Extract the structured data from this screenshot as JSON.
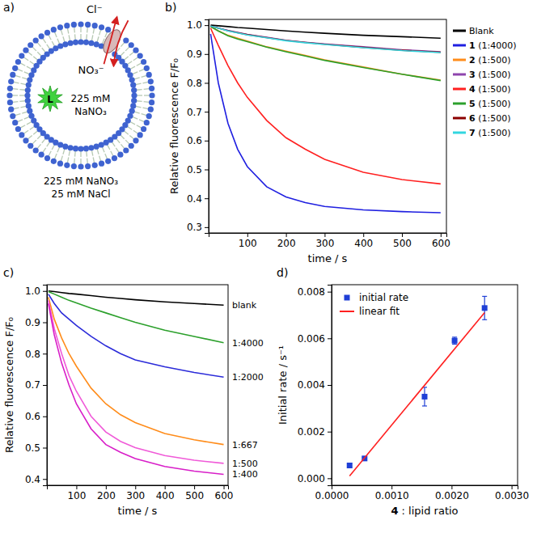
{
  "diagram": {
    "panel_label": "a)",
    "ion_out": "Cl⁻",
    "ion_in": "NO₃⁻",
    "dye": "L",
    "inside": [
      "225 mM",
      "NaNO₃"
    ],
    "outside": [
      "225 mM NaNO₃",
      "25 mM NaCl"
    ]
  },
  "chart_data": [
    {
      "type": "line",
      "panel_label": "b)",
      "x_label": "time / s",
      "y_label": "Relative fluorescence F/F₀",
      "xlim": [
        0,
        615
      ],
      "ylim": [
        0.28,
        1.02
      ],
      "xticks": [
        100,
        200,
        300,
        400,
        500,
        600
      ],
      "yticks": [
        0.3,
        0.4,
        0.5,
        0.6,
        0.7,
        0.8,
        0.9,
        {
          "value": 1,
          "label": "1.0"
        }
      ],
      "legend": "right",
      "x": [
        5,
        25,
        50,
        75,
        100,
        150,
        200,
        250,
        300,
        400,
        500,
        600
      ],
      "series": [
        {
          "name": "Blank",
          "color": "#000000",
          "values": [
            1.0,
            0.998,
            0.995,
            0.992,
            0.99,
            0.985,
            0.98,
            0.976,
            0.972,
            0.965,
            0.96,
            0.955
          ]
        },
        {
          "name": "1 (1:4000)",
          "color": "#1f1fe0",
          "values": [
            0.97,
            0.8,
            0.66,
            0.57,
            0.51,
            0.44,
            0.405,
            0.385,
            0.372,
            0.36,
            0.354,
            0.35
          ]
        },
        {
          "name": "2 (1:500)",
          "color": "#ff8c1a",
          "values": [
            0.995,
            0.98,
            0.965,
            0.955,
            0.945,
            0.925,
            0.91,
            0.895,
            0.88,
            0.855,
            0.83,
            0.81
          ]
        },
        {
          "name": "3 (1:500)",
          "color": "#8e44ad",
          "values": [
            0.997,
            0.99,
            0.982,
            0.975,
            0.968,
            0.958,
            0.948,
            0.941,
            0.935,
            0.925,
            0.915,
            0.908
          ]
        },
        {
          "name": "4 (1:500)",
          "color": "#ff2020",
          "values": [
            0.99,
            0.93,
            0.86,
            0.8,
            0.75,
            0.67,
            0.61,
            0.57,
            0.535,
            0.49,
            0.465,
            0.45
          ]
        },
        {
          "name": "5 (1:500)",
          "color": "#2ca02c",
          "values": [
            0.995,
            0.98,
            0.963,
            0.952,
            0.943,
            0.924,
            0.908,
            0.893,
            0.878,
            0.853,
            0.83,
            0.808
          ]
        },
        {
          "name": "6 (1:500)",
          "color": "#8b0000",
          "values": [
            0.997,
            0.99,
            0.981,
            0.974,
            0.967,
            0.957,
            0.947,
            0.94,
            0.934,
            0.923,
            0.913,
            0.906
          ]
        },
        {
          "name": "7 (1:500)",
          "color": "#33d6e0",
          "values": [
            0.997,
            0.99,
            0.98,
            0.973,
            0.966,
            0.956,
            0.946,
            0.939,
            0.933,
            0.922,
            0.912,
            0.905
          ]
        }
      ]
    },
    {
      "type": "line",
      "panel_label": "c)",
      "x_label": "time / s",
      "y_label": "Relative fluorescence F/F₀",
      "xlim": [
        0,
        615
      ],
      "ylim": [
        0.38,
        1.02
      ],
      "xticks": [
        100,
        200,
        300,
        400,
        500,
        600
      ],
      "yticks": [
        0.4,
        0.5,
        0.6,
        0.7,
        0.8,
        0.9,
        {
          "value": 1,
          "label": "1.0"
        }
      ],
      "legend": "end",
      "x": [
        5,
        25,
        50,
        75,
        100,
        150,
        200,
        250,
        300,
        400,
        500,
        600
      ],
      "series": [
        {
          "name": "blank",
          "color": "#000000",
          "values": [
            1.0,
            0.998,
            0.995,
            0.992,
            0.99,
            0.985,
            0.98,
            0.976,
            0.972,
            0.965,
            0.96,
            0.955
          ]
        },
        {
          "name": "1:4000",
          "color": "#2ca02c",
          "values": [
            0.998,
            0.99,
            0.98,
            0.97,
            0.962,
            0.945,
            0.93,
            0.915,
            0.9,
            0.875,
            0.855,
            0.835
          ]
        },
        {
          "name": "1:2000",
          "color": "#2b2bd9",
          "values": [
            0.99,
            0.96,
            0.93,
            0.91,
            0.89,
            0.855,
            0.825,
            0.8,
            0.78,
            0.758,
            0.74,
            0.725
          ]
        },
        {
          "name": "1:667",
          "color": "#ff8c1a",
          "values": [
            0.98,
            0.91,
            0.85,
            0.8,
            0.76,
            0.69,
            0.64,
            0.605,
            0.58,
            0.545,
            0.525,
            0.51
          ]
        },
        {
          "name": "1:500",
          "color": "#f05ad8",
          "values": [
            0.97,
            0.88,
            0.8,
            0.73,
            0.68,
            0.6,
            0.55,
            0.52,
            0.5,
            0.475,
            0.46,
            0.45
          ]
        },
        {
          "name": "1:400",
          "color": "#d81ec8",
          "values": [
            0.96,
            0.86,
            0.77,
            0.7,
            0.64,
            0.56,
            0.51,
            0.485,
            0.465,
            0.44,
            0.425,
            0.415
          ]
        }
      ]
    },
    {
      "type": "scatter",
      "panel_label": "d)",
      "x_label": "4 : lipid ratio",
      "y_label": "Initial rate / s⁻¹",
      "xlim": [
        0,
        0.0031
      ],
      "ylim": [
        -0.0003,
        0.0083
      ],
      "xticks": [
        {
          "value": 0,
          "label": "0.0000"
        },
        {
          "value": 0.001,
          "label": "0.0010"
        },
        {
          "value": 0.002,
          "label": "0.0020"
        },
        {
          "value": 0.003,
          "label": "0.0030"
        }
      ],
      "yticks": [
        {
          "value": 0,
          "label": "0.000"
        },
        {
          "value": 0.002,
          "label": "0.002"
        },
        {
          "value": 0.004,
          "label": "0.004"
        },
        {
          "value": 0.006,
          "label": "0.006"
        },
        {
          "value": 0.008,
          "label": "0.008"
        }
      ],
      "legend": "upper left",
      "series": [
        {
          "name": "initial rate",
          "type": "scatter",
          "marker": "square",
          "color": "#1f3fd6",
          "x": [
            0.0003,
            0.00055,
            0.00155,
            0.00205,
            0.00255
          ],
          "values": [
            0.00055,
            0.00085,
            0.0035,
            0.0059,
            0.0073
          ],
          "errors": [
            0.0001,
            5e-05,
            0.0004,
            0.00015,
            0.0005
          ]
        },
        {
          "name": "linear fit",
          "type": "line",
          "color": "#ff2020",
          "x": [
            0.0003,
            0.00255
          ],
          "values": [
            0.0001,
            0.0071
          ]
        }
      ]
    }
  ]
}
